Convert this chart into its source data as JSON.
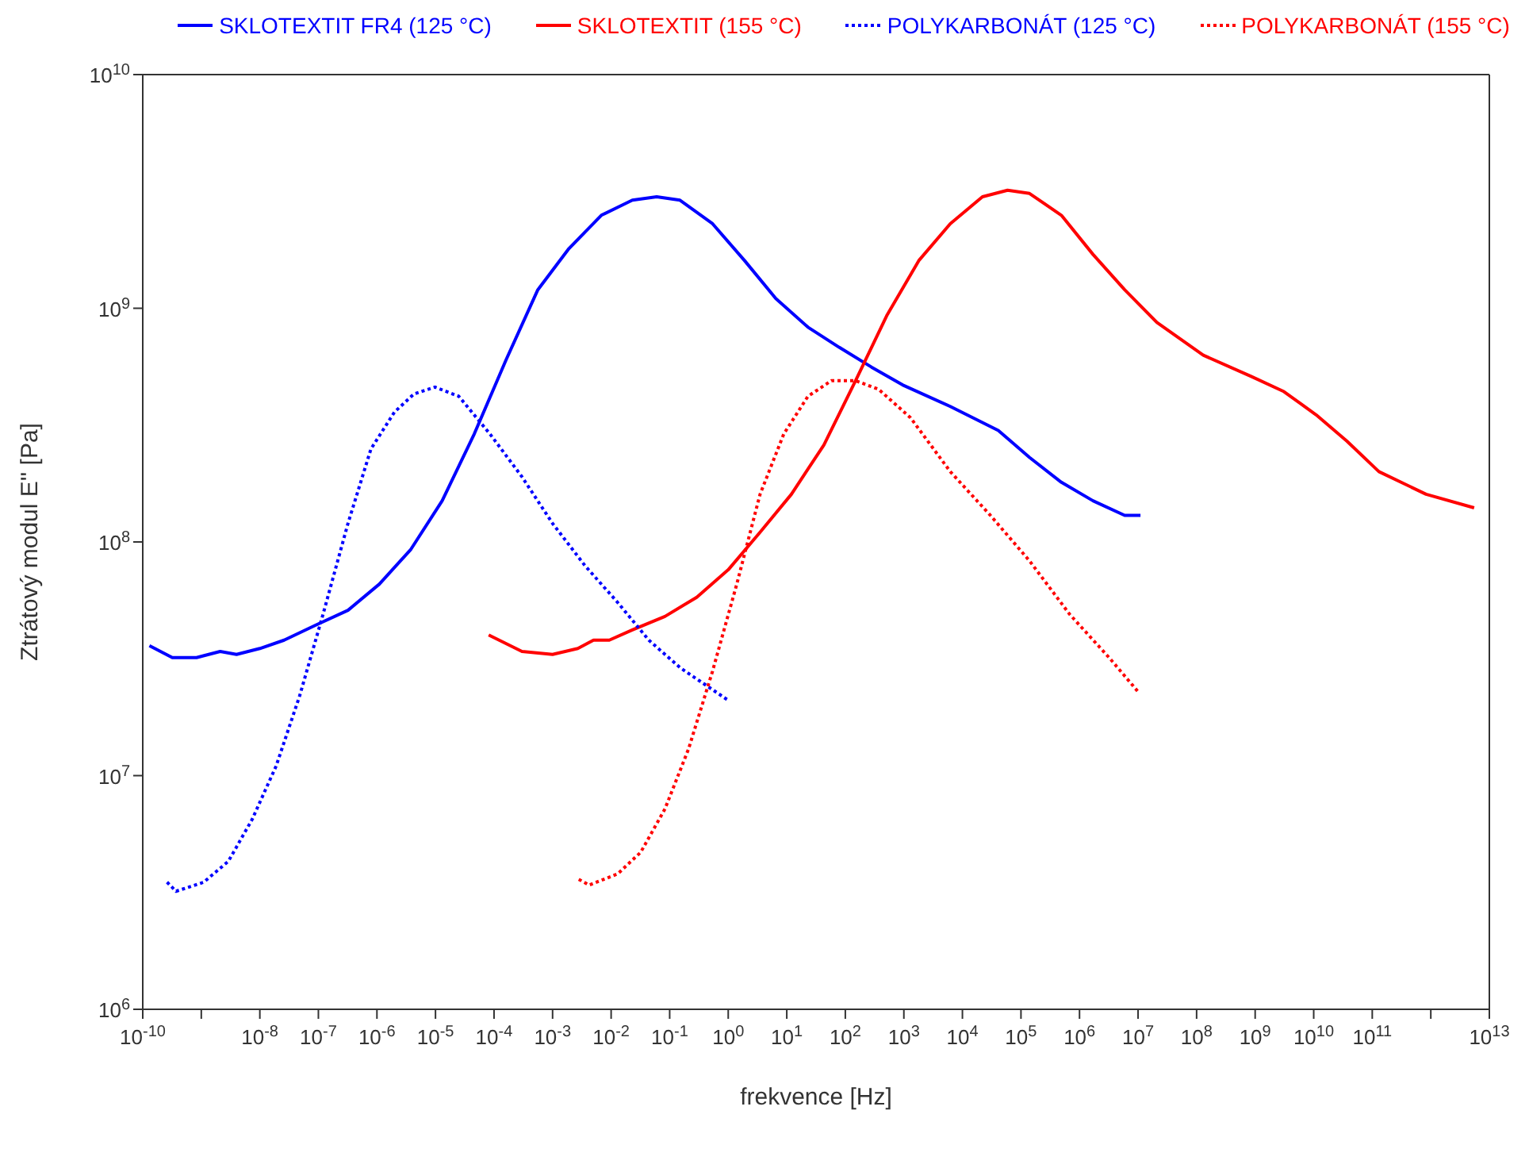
{
  "chart_data": {
    "type": "line",
    "xlabel": "frekvence [Hz]",
    "ylabel": "Ztrátový modul E'' [Pa]",
    "log": "xy",
    "legend": "top",
    "grid": false,
    "marker": "none",
    "xlim": [
      1e-10,
      10000000000000.0
    ],
    "ylim": [
      1000000.0,
      10000000000.0
    ],
    "xticks": [
      {
        "value": 1e-10,
        "label": "10$^{-10}$"
      },
      {
        "value": 1e-09,
        "label": null
      },
      {
        "value": 1e-08,
        "label": "10$^{-8}$"
      },
      {
        "value": 1e-07,
        "label": "10$^{-7}$"
      },
      {
        "value": 1e-06,
        "label": "10$^{-6}$"
      },
      {
        "value": 1e-05,
        "label": "10$^{-5}$"
      },
      {
        "value": 0.0001,
        "label": "10$^{-4}$"
      },
      {
        "value": 0.001,
        "label": "10$^{-3}$"
      },
      {
        "value": 0.01,
        "label": "10$^{-2}$"
      },
      {
        "value": 0.1,
        "label": "10$^{-1}$"
      },
      {
        "value": 1,
        "label": "10$^{0}$"
      },
      {
        "value": 10,
        "label": "10$^{1}$"
      },
      {
        "value": 100,
        "label": "10$^{2}$"
      },
      {
        "value": 1000,
        "label": "10$^{3}$"
      },
      {
        "value": 10000.0,
        "label": "10$^{4}$"
      },
      {
        "value": 100000.0,
        "label": "10$^{5}$"
      },
      {
        "value": 1000000.0,
        "label": "10$^{6}$"
      },
      {
        "value": 10000000.0,
        "label": "10$^{7}$"
      },
      {
        "value": 100000000.0,
        "label": "10$^{8}$"
      },
      {
        "value": 1000000000.0,
        "label": "10$^{9}$"
      },
      {
        "value": 10000000000.0,
        "label": "10$^{10}$"
      },
      {
        "value": 100000000000.0,
        "label": "10$^{11}$"
      },
      {
        "value": 1000000000000.0,
        "label": null
      },
      {
        "value": 10000000000000.0,
        "label": "10$^{13}$"
      }
    ],
    "yticks": [
      {
        "value": 1000000.0,
        "label": "10$^{6}$"
      },
      {
        "value": 10000000.0,
        "label": "10$^{7}$"
      },
      {
        "value": 100000000.0,
        "label": "10$^{8}$"
      },
      {
        "value": 1000000000.0,
        "label": "10$^{9}$"
      },
      {
        "value": 10000000000.0,
        "label": "10$^{10}$"
      }
    ],
    "series": [
      {
        "name": "SKLOTEXTIT FR4 (125 °C)",
        "color": "#0000ff",
        "line_style": "solid",
        "x": [
          1.3e-10,
          3.2e-10,
          8.3e-10,
          2.1e-09,
          4e-09,
          1e-08,
          2.6e-08,
          8.9e-08,
          3.2e-07,
          1.1e-06,
          3.8e-06,
          1.3e-05,
          4.6e-05,
          0.00016,
          0.00056,
          0.0019,
          0.0068,
          0.023,
          0.06,
          0.15,
          0.54,
          1.9,
          6.5,
          23,
          79,
          280,
          950,
          6200,
          41000,
          140000,
          490000,
          1700000.0,
          5900000.0,
          11000000.0
        ],
        "values": [
          36000000.0,
          32000000.0,
          32000000.0,
          34000000.0,
          33000000.0,
          35000000.0,
          38000000.0,
          44000000.0,
          51000000.0,
          66000000.0,
          93000000.0,
          150000000.0,
          290000000.0,
          600000000.0,
          1200000000.0,
          1800000000.0,
          2500000000.0,
          2900000000.0,
          3000000000.0,
          2900000000.0,
          2300000000.0,
          1600000000.0,
          1100000000.0,
          830000000.0,
          680000000.0,
          560000000.0,
          470000000.0,
          380000000.0,
          300000000.0,
          230000000.0,
          180000000.0,
          150000000.0,
          130000000.0,
          130000000.0
        ]
      },
      {
        "name": "SKLOTEXTIT (155 °C)",
        "color": "#ff0000",
        "line_style": "solid",
        "x": [
          8.1e-05,
          0.0003,
          0.001,
          0.0027,
          0.005,
          0.0093,
          0.023,
          0.083,
          0.29,
          1,
          3.5,
          12,
          43,
          150,
          510,
          1800,
          6200,
          22000,
          59000,
          140000,
          490000,
          1700000.0,
          5900000.0,
          21000000.0,
          130000000.0,
          870000000.0,
          3100000000.0,
          11000000000.0,
          37000000000.0,
          130000000000.0,
          830000000000.0,
          5500000000000.0
        ],
        "values": [
          40000000.0,
          34000000.0,
          33000000.0,
          35000000.0,
          38000000.0,
          38000000.0,
          42000000.0,
          48000000.0,
          58000000.0,
          76000000.0,
          110000000.0,
          160000000.0,
          260000000.0,
          490000000.0,
          930000000.0,
          1600000000.0,
          2300000000.0,
          3000000000.0,
          3200000000.0,
          3100000000.0,
          2500000000.0,
          1700000000.0,
          1200000000.0,
          870000000.0,
          630000000.0,
          510000000.0,
          440000000.0,
          350000000.0,
          270000000.0,
          200000000.0,
          160000000.0,
          140000000.0
        ]
      },
      {
        "name": "POLYKARBONÁT (125 °C)",
        "color": "#0000ff",
        "line_style": "dotted",
        "x": [
          2.6e-10,
          3.7e-10,
          1.1e-09,
          2.9e-09,
          7.4e-09,
          1.9e-08,
          4.8e-08,
          1.2e-07,
          3.2e-07,
          7.9e-07,
          2e-06,
          4.3e-06,
          9.8e-06,
          2.5e-05,
          8.5e-05,
          0.0003,
          0.001,
          0.0036,
          0.013,
          0.044,
          0.15,
          1
        ],
        "values": [
          3500000.0,
          3200000.0,
          3500000.0,
          4300000.0,
          6500000.0,
          11000000.0,
          22000000.0,
          49000000.0,
          120000000.0,
          250000000.0,
          360000000.0,
          430000000.0,
          460000000.0,
          420000000.0,
          290000000.0,
          190000000.0,
          120000000.0,
          79000000.0,
          55000000.0,
          38000000.0,
          29000000.0,
          21000000.0
        ]
      },
      {
        "name": "POLYKARBONÁT (155 °C)",
        "color": "#ff0000",
        "line_style": "dotted",
        "x": [
          0.0028,
          0.0042,
          0.013,
          0.032,
          0.083,
          0.21,
          0.54,
          1.4,
          3.5,
          8.9,
          23,
          58,
          150,
          370,
          1300,
          6200,
          30000,
          140000,
          680000,
          3200000.0,
          9800000.0
        ],
        "values": [
          3600000.0,
          3400000.0,
          3800000.0,
          4700000.0,
          7200000.0,
          13000000.0,
          28000000.0,
          66000000.0,
          160000000.0,
          290000000.0,
          420000000.0,
          490000000.0,
          490000000.0,
          450000000.0,
          340000000.0,
          200000000.0,
          130000000.0,
          83000000.0,
          49000000.0,
          32000000.0,
          23000000.0
        ]
      }
    ]
  }
}
